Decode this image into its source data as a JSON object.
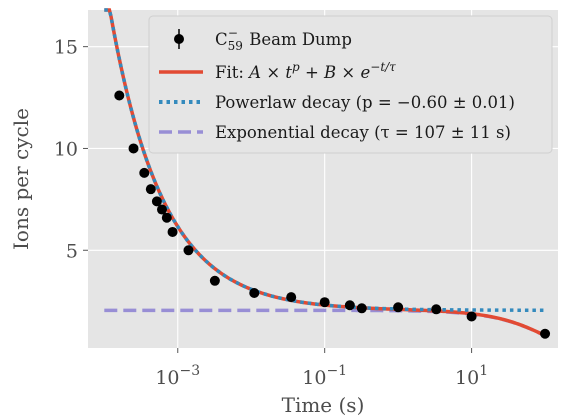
{
  "chart_data": {
    "type": "scatter",
    "xlabel": "Time (s)",
    "ylabel": "Ions per cycle",
    "xscale": "log",
    "xlim": [
      6e-05,
      150
    ],
    "ylim": [
      0.2,
      16.8
    ],
    "grid": true,
    "legend_position": "top-right",
    "x_ticks": [
      {
        "value": 0.001,
        "label": "10^{-3}"
      },
      {
        "value": 0.1,
        "label": "10^{-1}"
      },
      {
        "value": 10,
        "label": "10^{1}"
      }
    ],
    "y_ticks": [
      5,
      10,
      15
    ],
    "series": [
      {
        "name": "C_{59}^{-} Beam Dump",
        "kind": "scatter",
        "color": "#000000",
        "points": [
          {
            "x": 0.00016,
            "y": 12.6
          },
          {
            "x": 0.00025,
            "y": 10.0
          },
          {
            "x": 0.00035,
            "y": 8.8
          },
          {
            "x": 0.00043,
            "y": 8.0
          },
          {
            "x": 0.00052,
            "y": 7.4
          },
          {
            "x": 0.00061,
            "y": 7.0
          },
          {
            "x": 0.00071,
            "y": 6.6
          },
          {
            "x": 0.00085,
            "y": 5.9
          },
          {
            "x": 0.0014,
            "y": 5.0
          },
          {
            "x": 0.0032,
            "y": 3.5
          },
          {
            "x": 0.011,
            "y": 2.9
          },
          {
            "x": 0.035,
            "y": 2.7
          },
          {
            "x": 0.1,
            "y": 2.45
          },
          {
            "x": 0.22,
            "y": 2.3
          },
          {
            "x": 0.32,
            "y": 2.15
          },
          {
            "x": 1.0,
            "y": 2.2
          },
          {
            "x": 3.3,
            "y": 2.1
          },
          {
            "x": 10,
            "y": 1.75
          },
          {
            "x": 100,
            "y": 0.9
          }
        ]
      },
      {
        "name": "Fit: A × t^p + B × e^{−t/τ}",
        "kind": "line",
        "style": "solid",
        "color": "#e24a33"
      },
      {
        "name": "Powerlaw decay (p = −0.60 ± 0.01)",
        "kind": "line",
        "style": "dotted",
        "color": "#348abd"
      },
      {
        "name": "Exponential decay (τ = 107 ± 11 s)",
        "kind": "line",
        "style": "dashed",
        "color": "#988ed5"
      }
    ]
  },
  "legend": {
    "scatter_label": {
      "main": "C",
      "sub": "59",
      "sup": "−",
      "rest": " Beam Dump"
    },
    "fit_label": {
      "prefix": "Fit: ",
      "formula": "A × t",
      "p_sup": "p",
      "mid": " + B × e",
      "exp_sup": "−t/τ"
    },
    "powerlaw_label": "Powerlaw decay (p = −0.60 ± 0.01)",
    "exponential_label": "Exponential decay (τ = 107 ± 11 s)"
  },
  "colors": {
    "plot_background": "#e5e5e5",
    "fit": "#e24a33",
    "powerlaw": "#348abd",
    "exponential": "#988ed5",
    "points": "#000000"
  }
}
